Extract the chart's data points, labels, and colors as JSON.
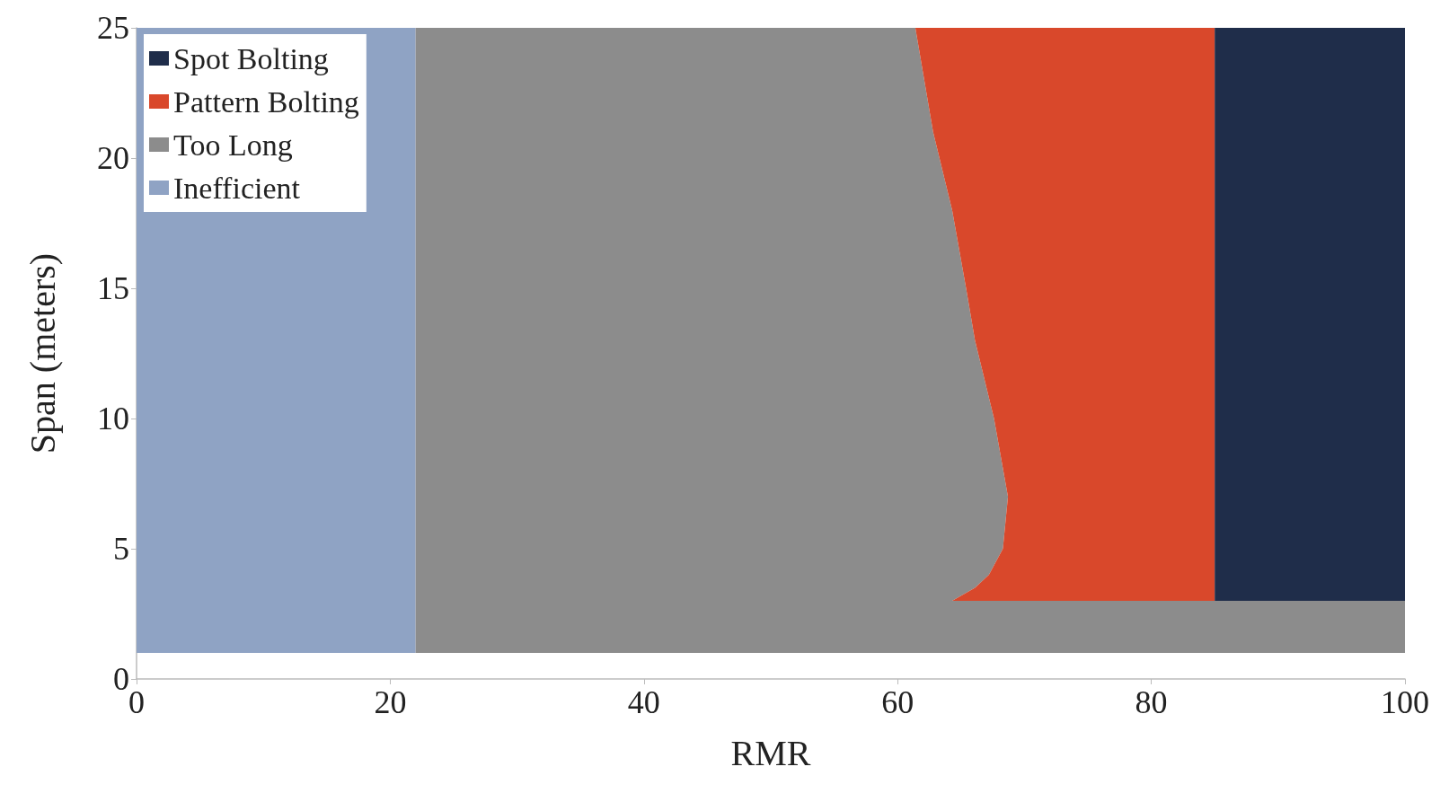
{
  "chart_data": {
    "type": "area",
    "orientation": "horizontal",
    "stacked": true,
    "xlabel": "RMR",
    "ylabel": "Span (meters)",
    "x": [
      1,
      3,
      3,
      3.5,
      4,
      5,
      7,
      10,
      13,
      15,
      18,
      21,
      25
    ],
    "series": [
      {
        "name": "Inefficient",
        "color": "#8fa3c4",
        "values": [
          22,
          22,
          22,
          22,
          22,
          22,
          22,
          22,
          22,
          22,
          22,
          22,
          22
        ]
      },
      {
        "name": "Too Long",
        "color": "#8c8c8c",
        "values": [
          78,
          78,
          42.3,
          44.1,
          45.2,
          46.3,
          46.7,
          45.6,
          44.1,
          43.4,
          42.3,
          40.8,
          39.4
        ]
      },
      {
        "name": "Pattern Bolting",
        "color": "#d9482b",
        "values": [
          0,
          0,
          20.7,
          18.9,
          17.8,
          16.7,
          16.3,
          17.4,
          18.9,
          19.6,
          20.7,
          22.2,
          23.6
        ]
      },
      {
        "name": "Spot Bolting",
        "color": "#1f2d4a",
        "values": [
          0,
          0,
          15,
          15,
          15,
          15,
          15,
          15,
          15,
          15,
          15,
          15,
          15
        ]
      }
    ],
    "xlim": [
      0,
      100
    ],
    "xticks": [
      0,
      20,
      40,
      60,
      80,
      100
    ],
    "ylim": [
      0,
      25
    ],
    "yticks": [
      0,
      5,
      10,
      15,
      20,
      25
    ],
    "legend": "top left",
    "grid": false
  }
}
